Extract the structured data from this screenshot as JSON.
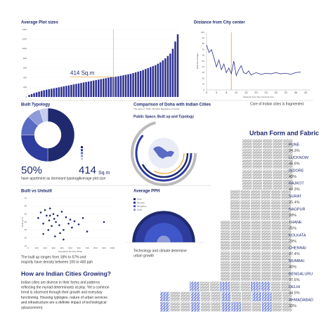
{
  "chart_data": [
    {
      "type": "bar",
      "title": "Average Plot sizes",
      "color": "#2b2f8f",
      "ylim": [
        0,
        1400
      ],
      "yticks": [
        0,
        200,
        400,
        600,
        800,
        1000,
        1200,
        1400
      ],
      "values": [
        40,
        60,
        80,
        95,
        110,
        125,
        140,
        150,
        160,
        170,
        180,
        190,
        200,
        210,
        220,
        230,
        240,
        250,
        260,
        270,
        280,
        290,
        300,
        310,
        320,
        330,
        340,
        350,
        360,
        370,
        380,
        390,
        400,
        410,
        414,
        420,
        430,
        440,
        450,
        460,
        470,
        480,
        495,
        510,
        525,
        540,
        560,
        580,
        600,
        620,
        640,
        660,
        690,
        720,
        760,
        800,
        850,
        900,
        1000,
        1150,
        1300
      ],
      "annotation": {
        "label": "414 Sq.m",
        "value": 414
      }
    },
    {
      "type": "line",
      "title": "Distance from City center",
      "x_label": "Distance from City Center(in km)",
      "y_label": "Built Percentage",
      "color": "#2b2f8f",
      "x": [
        0,
        1,
        2,
        3,
        4,
        5,
        6,
        7,
        8,
        9,
        10,
        11,
        12,
        13,
        14,
        15,
        16,
        17,
        18,
        20,
        22,
        24,
        26,
        28,
        30,
        32,
        34,
        36,
        38
      ],
      "values": [
        78,
        65,
        70,
        55,
        40,
        52,
        35,
        45,
        30,
        38,
        28,
        50,
        25,
        35,
        42,
        30,
        28,
        33,
        26,
        30,
        27,
        29,
        28,
        30,
        28,
        29,
        27,
        30,
        31
      ],
      "xlim": [
        0,
        42
      ],
      "ylim": [
        0,
        100
      ],
      "xticks": [
        0,
        4,
        8,
        12,
        16,
        20,
        24,
        28,
        32,
        36,
        40
      ],
      "yticks": [
        0,
        10,
        20,
        30,
        40,
        50,
        60,
        70,
        80,
        90,
        100
      ],
      "highlight_x": 10,
      "highlight_color": "#f0a020",
      "note": "Core of Indian cities is fragmented."
    },
    {
      "type": "pie",
      "title": "Built Typology",
      "categories": [
        null,
        null,
        null,
        null,
        null
      ],
      "values": [
        50,
        25,
        12,
        8,
        5
      ],
      "colors": [
        "#1f2a6e",
        "#2e3c9e",
        "#5a6bc4",
        "#8f9bd8",
        "#c6cdee"
      ],
      "stats": [
        {
          "value": "50%",
          "text": "have apartment as dominant typology"
        },
        {
          "value": "414",
          "unit": "Sq.m",
          "text": "Average plot size"
        }
      ]
    },
    {
      "type": "scatter",
      "title": "Built vs Unbuilt",
      "x_label": "Population Density (PPH)",
      "y_label": "Built up %",
      "color": "#1f2a6e",
      "x": [
        120,
        150,
        180,
        200,
        220,
        250,
        260,
        280,
        300,
        310,
        330,
        350,
        370,
        400,
        420,
        450,
        480,
        500,
        520,
        550,
        600,
        650,
        700,
        180,
        240,
        320,
        380,
        260,
        420,
        900
      ],
      "values": [
        45,
        52,
        38,
        55,
        48,
        42,
        57,
        35,
        50,
        44,
        40,
        48,
        36,
        53,
        30,
        46,
        38,
        43,
        33,
        41,
        37,
        45,
        28,
        25,
        30,
        22,
        26,
        48,
        18,
        40
      ],
      "xlim": [
        0,
        1000
      ],
      "ylim": [
        10,
        70
      ],
      "xticks": [
        0,
        100,
        200,
        300,
        400,
        500,
        600,
        700,
        800,
        900,
        1000
      ],
      "yticks": [
        10,
        20,
        30,
        40,
        50,
        60,
        70
      ],
      "caption": [
        "The built up ranges from 18% to 57% and",
        "majority have density between 100 to 400 pph"
      ]
    },
    {
      "type": "semicircle",
      "title": "Average PPH",
      "rlim": [
        0,
        450
      ],
      "series": [
        {
          "name": "Delhi",
          "color": "#1f2a6e",
          "values": [
            420
          ]
        },
        {
          "name": "Mumbai",
          "color": "#2e3c9e",
          "values": [
            380
          ]
        },
        {
          "name": "Bengaluru",
          "color": "#3f57c8",
          "values": [
            260
          ]
        },
        {
          "name": "Doha",
          "color": "#8f9bd8",
          "values": [
            90
          ]
        }
      ],
      "caption": [
        "Technology and climate determine",
        "urban growth"
      ]
    }
  ],
  "comparison": {
    "title": "Comparison of Doha with Indian Cities",
    "subtitle": "The case of : Delhi, Mumbai, Bangalore v/s Doha",
    "heading": "Public Space, Built up and Typology"
  },
  "intro": {
    "title": "How are Indian Cities Growing?",
    "lines": [
      "Indian cities are diverse in their forms and patterns",
      "reflecting the myriad determinants at play. Yet a common",
      "trend is observed through their growth and everyday",
      "functioning. Housing typlogies, nature of urban services",
      "and infrastructure are a definite impact of technological",
      "advancement."
    ]
  },
  "urban_form": {
    "title": "Urban Form and Fabric",
    "cities": [
      [
        "PUNE",
        "24.3%"
      ],
      [
        "LUCKNOW",
        "46.6%"
      ],
      [
        "INDORE",
        "40%"
      ],
      [
        "RAJKOT",
        "42.3%"
      ],
      [
        "SURAT",
        "35.4%"
      ],
      [
        "NAGPUR",
        "28%"
      ],
      [
        "THANE",
        "25%"
      ],
      [
        "KOLKATA",
        "29%"
      ],
      [
        "CHENNAI",
        "37.4%"
      ],
      [
        "MUMBAI",
        "40%"
      ],
      [
        "BENGALURU",
        "37.6%"
      ],
      [
        "DELHI",
        "34.5%"
      ],
      [
        "AHMADABAD",
        "33%"
      ]
    ]
  }
}
